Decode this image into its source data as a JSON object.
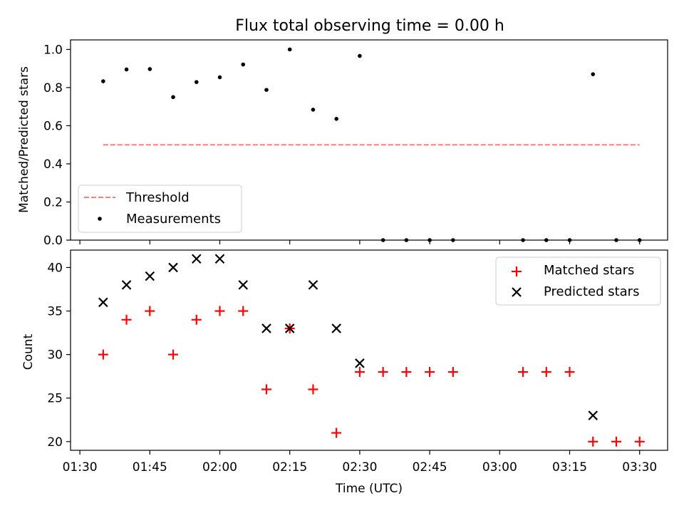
{
  "chart_data": [
    {
      "type": "scatter",
      "title": "Flux total observing time = 0.00 h",
      "xlabel": "",
      "ylabel": "Matched/Predicted stars",
      "xlim": [
        "01:28",
        "03:36"
      ],
      "ylim": [
        0,
        1.05
      ],
      "yticks": [
        0.0,
        0.2,
        0.4,
        0.6,
        0.8,
        1.0
      ],
      "ytick_labels": [
        "0.0",
        "0.2",
        "0.4",
        "0.6",
        "0.8",
        "1.0"
      ],
      "legend_placement": "lower-left",
      "threshold": {
        "name": "Threshold",
        "value": 0.5,
        "x_start": "01:35",
        "x_end": "03:30",
        "color": "#ff7f7f",
        "style": "dashed"
      },
      "series": [
        {
          "name": "Measurements",
          "color": "#000000",
          "marker": "dot",
          "x": [
            "01:35",
            "01:40",
            "01:45",
            "01:50",
            "01:55",
            "02:00",
            "02:05",
            "02:10",
            "02:15",
            "02:20",
            "02:25",
            "02:30",
            "02:35",
            "02:40",
            "02:45",
            "02:50",
            "03:05",
            "03:10",
            "03:15",
            "03:20",
            "03:25",
            "03:30"
          ],
          "y": [
            0.833,
            0.895,
            0.897,
            0.75,
            0.829,
            0.854,
            0.921,
            0.788,
            1.0,
            0.684,
            0.636,
            0.966,
            0,
            0,
            0,
            0,
            0,
            0,
            0,
            0.87,
            0,
            0
          ]
        }
      ]
    },
    {
      "type": "scatter",
      "title": "",
      "xlabel": "Time (UTC)",
      "ylabel": "Count",
      "xlim": [
        "01:28",
        "03:36"
      ],
      "ylim": [
        19,
        42
      ],
      "xticks": [
        "01:30",
        "01:45",
        "02:00",
        "02:15",
        "02:30",
        "02:45",
        "03:00",
        "03:15",
        "03:30"
      ],
      "yticks": [
        20,
        25,
        30,
        35,
        40
      ],
      "ytick_labels": [
        "20",
        "25",
        "30",
        "35",
        "40"
      ],
      "legend_placement": "upper-right",
      "series": [
        {
          "name": "Matched stars",
          "color": "#ff0000",
          "marker": "plus",
          "x": [
            "01:35",
            "01:40",
            "01:45",
            "01:50",
            "01:55",
            "02:00",
            "02:05",
            "02:10",
            "02:15",
            "02:20",
            "02:25",
            "02:30",
            "02:35",
            "02:40",
            "02:45",
            "02:50",
            "03:05",
            "03:10",
            "03:15",
            "03:20",
            "03:25",
            "03:30"
          ],
          "y": [
            30,
            34,
            35,
            30,
            34,
            35,
            35,
            26,
            33,
            26,
            21,
            28,
            28,
            28,
            28,
            28,
            28,
            28,
            28,
            20,
            20,
            20
          ]
        },
        {
          "name": "Predicted stars",
          "color": "#000000",
          "marker": "x",
          "x": [
            "01:35",
            "01:40",
            "01:45",
            "01:50",
            "01:55",
            "02:00",
            "02:05",
            "02:10",
            "02:15",
            "02:20",
            "02:25",
            "02:30",
            "03:20"
          ],
          "y": [
            36,
            38,
            39,
            40,
            41,
            41,
            38,
            33,
            33,
            38,
            33,
            29,
            23
          ]
        }
      ]
    }
  ]
}
